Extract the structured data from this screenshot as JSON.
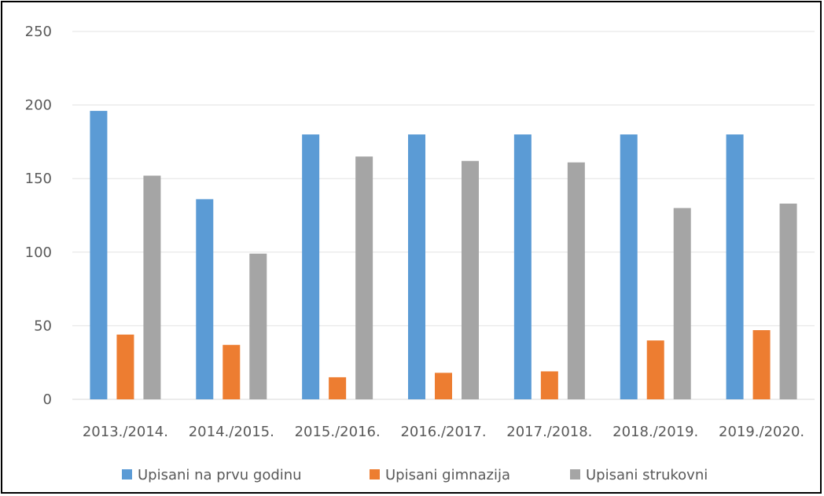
{
  "chart_data": {
    "type": "bar",
    "categories": [
      "2013./2014.",
      "2014./2015.",
      "2015./2016.",
      "2016./2017.",
      "2017./2018.",
      "2018./2019.",
      "2019./2020."
    ],
    "series": [
      {
        "name": "Upisani na prvu godinu",
        "color": "#5b9bd5",
        "values": [
          196,
          136,
          180,
          180,
          180,
          180,
          180
        ]
      },
      {
        "name": "Upisani gimnazija",
        "color": "#ed7d31",
        "values": [
          44,
          37,
          15,
          18,
          19,
          40,
          47
        ]
      },
      {
        "name": "Upisani strukovni",
        "color": "#a5a5a5",
        "values": [
          152,
          99,
          165,
          162,
          161,
          130,
          133
        ]
      }
    ],
    "ylim": [
      0,
      250
    ],
    "yticks": [
      0,
      50,
      100,
      150,
      200,
      250
    ],
    "grid": true,
    "legend_position": "bottom",
    "title": "",
    "xlabel": "",
    "ylabel": ""
  }
}
